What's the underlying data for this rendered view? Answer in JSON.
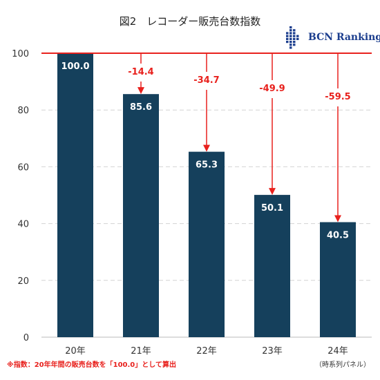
{
  "chart_data": {
    "type": "bar",
    "title": "図2　レコーダー販売台数指数",
    "categories": [
      "20年",
      "21年",
      "22年",
      "23年",
      "24年"
    ],
    "values": [
      100.0,
      85.6,
      65.3,
      50.1,
      40.5
    ],
    "value_labels": [
      "100.0",
      "85.6",
      "65.3",
      "50.1",
      "40.5"
    ],
    "differences": [
      null,
      "-14.4",
      "-34.7",
      "-49.9",
      "-59.5"
    ],
    "ylim": [
      0,
      100
    ],
    "yticks": [
      0,
      20,
      40,
      60,
      80,
      100
    ],
    "grid": true,
    "reference_line": 100,
    "bar_color": "#15405c",
    "accent_color": "#e8211d"
  },
  "logo": {
    "text": "BCN Ranking",
    "color": "#1c3e8e"
  },
  "footnote": "※指数：20年年間の販売台数を「100.0」として算出",
  "source": "（時系列パネル）"
}
